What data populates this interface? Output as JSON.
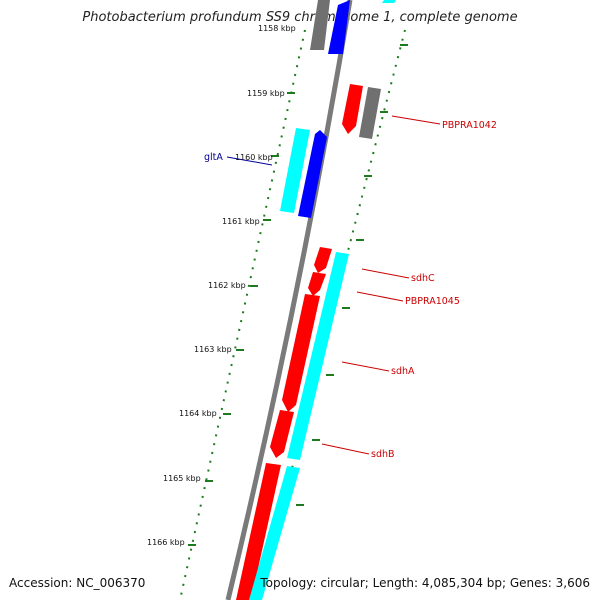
{
  "title": "Photobacterium profundum SS9 chromosome 1, complete genome",
  "footer": {
    "accession": "Accession: NC_006370",
    "summary": "Topology: circular; Length: 4,085,304 bp; Genes: 3,606"
  },
  "colors": {
    "backbone": "#7a7a7a",
    "ticks": "#1e7a1e",
    "red_gene": "#ff0000",
    "cyan_gene": "#00ffff",
    "blue_gene": "#0000ff",
    "gray_gene": "#707070",
    "label_red": "#cc0000",
    "label_blue": "#000099"
  },
  "ticks": [
    {
      "label": "1158 kbp"
    },
    {
      "label": "1159 kbp"
    },
    {
      "label": "1160 kbp"
    },
    {
      "label": "1161 kbp"
    },
    {
      "label": "1162 kbp"
    },
    {
      "label": "1163 kbp"
    },
    {
      "label": "1164 kbp"
    },
    {
      "label": "1165 kbp"
    },
    {
      "label": "1166 kbp"
    }
  ],
  "gene_labels": [
    {
      "text": "PBPRA1042"
    },
    {
      "text": "gltA"
    },
    {
      "text": "sdhC"
    },
    {
      "text": "PBPRA1045"
    },
    {
      "text": "sdhA"
    },
    {
      "text": "sdhB"
    }
  ]
}
